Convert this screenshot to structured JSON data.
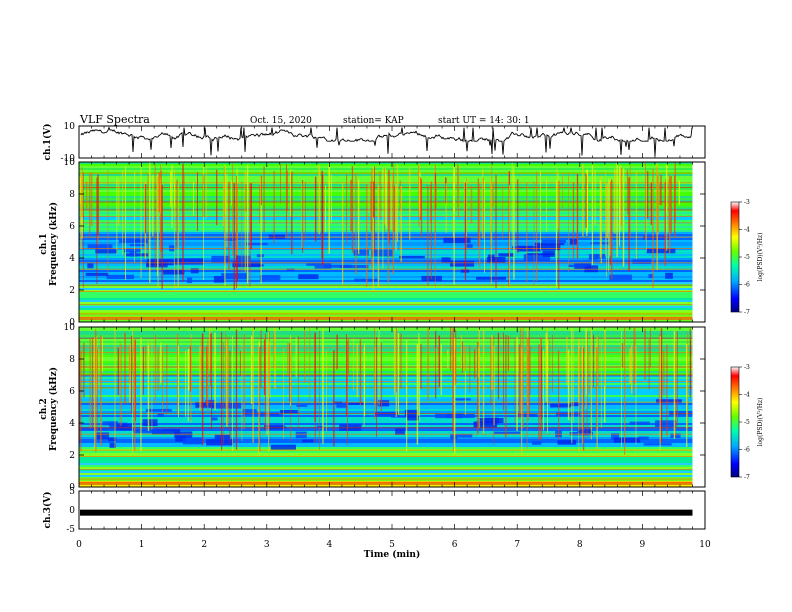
{
  "header": {
    "title": "VLF Spectra",
    "date": "Oct. 15, 2020",
    "station": "station= KAP",
    "start_ut": "start  UT =   14: 30: 1"
  },
  "chart_data": [
    {
      "type": "line",
      "panel": "ch1-waveform",
      "ylabel": "ch.1(V)",
      "ylim": [
        -10,
        10
      ],
      "yticks": [
        "10",
        "-10"
      ],
      "xlim": [
        0,
        10
      ],
      "note_shape": "noisy trace around ~4 V with frequent negative spikes"
    },
    {
      "type": "heatmap",
      "panel": "ch1-spectrogram",
      "ylabel_line1": "ch.1",
      "ylabel_line2": "Frequency  (kHz)",
      "ylim": [
        0,
        10
      ],
      "yticks": [
        "0",
        "2",
        "4",
        "6",
        "8",
        "10"
      ],
      "xlim": [
        0,
        9.8
      ],
      "colorbar": {
        "label": "log(PSD)(V²/Hz)",
        "range": [
          -7,
          -3
        ],
        "ticks": [
          "-3",
          "-4",
          "-5",
          "-6",
          "-7"
        ],
        "colors": [
          "#000080",
          "#0000ff",
          "#00aaff",
          "#00ffaa",
          "#66ff00",
          "#ffff00",
          "#ff7f00",
          "#ff0000",
          "#ffffff"
        ]
      }
    },
    {
      "type": "heatmap",
      "panel": "ch2-spectrogram",
      "ylabel_line1": "ch.2",
      "ylabel_line2": "Frequency  (kHz)",
      "ylim": [
        0,
        10
      ],
      "yticks": [
        "0",
        "2",
        "4",
        "6",
        "8",
        "10"
      ],
      "xlim": [
        0,
        9.8
      ],
      "colorbar": {
        "label": "log(PSD)(V²/Hz)",
        "range": [
          -7,
          -3
        ],
        "ticks": [
          "-3",
          "-4",
          "-5",
          "-6",
          "-7"
        ],
        "colors": [
          "#000080",
          "#0000ff",
          "#00aaff",
          "#00ffaa",
          "#66ff00",
          "#ffff00",
          "#ff7f00",
          "#ff0000",
          "#ffffff"
        ]
      }
    },
    {
      "type": "line",
      "panel": "ch3-waveform",
      "ylabel": "ch.3(V)",
      "ylim": [
        -5,
        5
      ],
      "yticks": [
        "5",
        "0",
        "-5"
      ],
      "xlim": [
        0,
        10
      ],
      "level": -0.7
    }
  ],
  "xaxis": {
    "label": "Time  (min)",
    "ticks": [
      "0",
      "1",
      "2",
      "3",
      "4",
      "5",
      "6",
      "7",
      "8",
      "9",
      "10"
    ],
    "range": [
      0,
      10
    ]
  }
}
